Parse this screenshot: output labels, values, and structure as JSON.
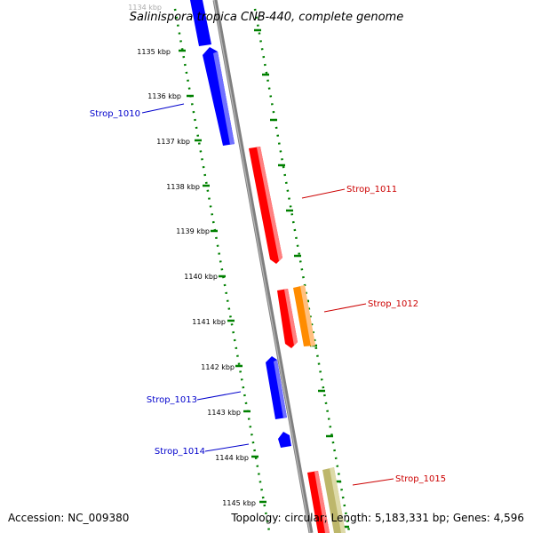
{
  "title": "Salinispora tropica CNB-440, complete genome",
  "accession": "Accession: NC_009380",
  "summary": "Topology: circular; Length: 5,183,331 bp; Genes: 4,596",
  "colors": {
    "backbone": "#808080",
    "forward_strand": "#0000ff",
    "reverse_strand": "#ff0000",
    "orange_feature": "#ff8c00",
    "tan_feature": "#bdb76b",
    "ticks": "#008000"
  },
  "kbp_labels": [
    "1134 kbp",
    "1135 kbp",
    "1136 kbp",
    "1137 kbp",
    "1138 kbp",
    "1139 kbp",
    "1140 kbp",
    "1141 kbp",
    "1142 kbp",
    "1143 kbp",
    "1144 kbp",
    "1145 kbp"
  ],
  "gene_labels": {
    "strop_1010": "Strop_1010",
    "strop_1011": "Strop_1011",
    "strop_1012": "Strop_1012",
    "strop_1013": "Strop_1013",
    "strop_1014": "Strop_1014",
    "strop_1015": "Strop_1015"
  }
}
